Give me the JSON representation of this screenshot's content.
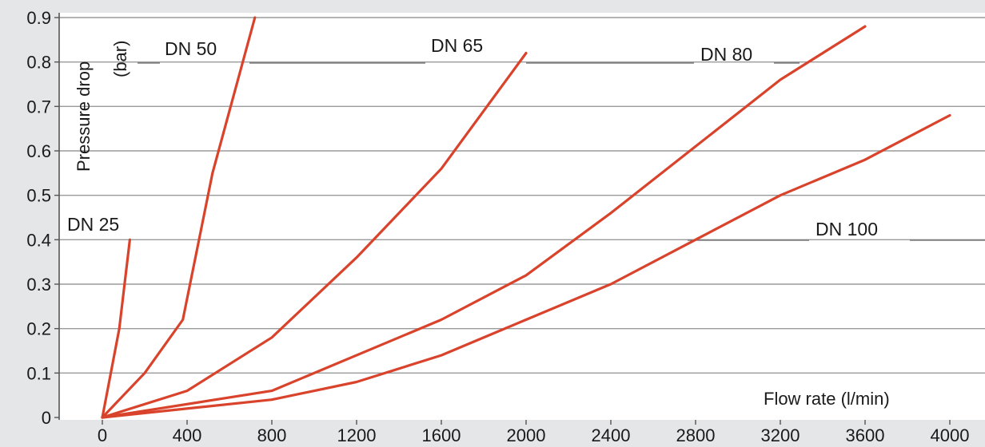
{
  "chart_data": {
    "type": "line",
    "title": "",
    "xlabel": "Flow rate (l/min)",
    "ylabel": "Pressure drop",
    "ylabel_unit": "(bar)",
    "xlim": [
      0,
      4000
    ],
    "ylim": [
      0,
      0.9
    ],
    "x_ticks": [
      "0",
      "400",
      "800",
      "1200",
      "1600",
      "2000",
      "2400",
      "2800",
      "3200",
      "3600",
      "4000"
    ],
    "y_ticks": [
      "0",
      "0.1",
      "0.2",
      "0.3",
      "0.4",
      "0.5",
      "0.6",
      "0.7",
      "0.8",
      "0.9"
    ],
    "grid": true,
    "line_color": "#d9432b",
    "series": [
      {
        "name": "DN 25",
        "x": [
          0,
          80,
          130
        ],
        "y": [
          0,
          0.2,
          0.4
        ]
      },
      {
        "name": "DN 50",
        "x": [
          0,
          200,
          380,
          520,
          720
        ],
        "y": [
          0,
          0.1,
          0.22,
          0.55,
          0.9
        ]
      },
      {
        "name": "DN 65",
        "x": [
          0,
          400,
          800,
          1200,
          1600,
          2000
        ],
        "y": [
          0,
          0.06,
          0.18,
          0.36,
          0.56,
          0.82
        ]
      },
      {
        "name": "DN 80",
        "x": [
          0,
          800,
          1600,
          2000,
          2400,
          2800,
          3200,
          3600
        ],
        "y": [
          0,
          0.06,
          0.22,
          0.32,
          0.46,
          0.61,
          0.76,
          0.88
        ]
      },
      {
        "name": "DN 100",
        "x": [
          0,
          800,
          1200,
          1600,
          2000,
          2400,
          2800,
          3200,
          3600,
          4000
        ],
        "y": [
          0,
          0.04,
          0.08,
          0.14,
          0.22,
          0.3,
          0.4,
          0.5,
          0.58,
          0.68
        ]
      }
    ]
  }
}
